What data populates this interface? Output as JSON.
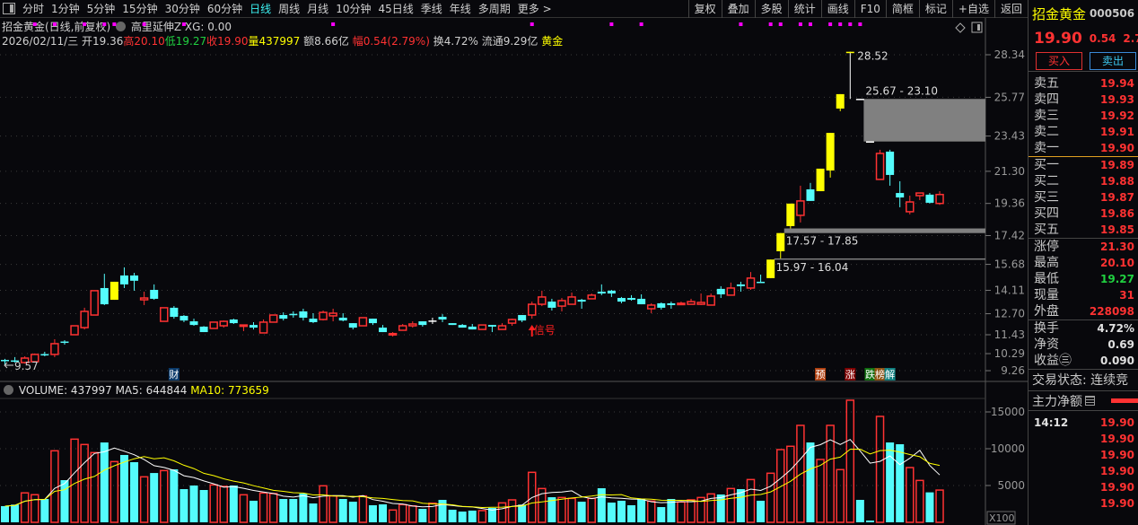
{
  "toolbar": {
    "periods": [
      "分时",
      "1分钟",
      "5分钟",
      "15分钟",
      "30分钟",
      "60分钟",
      "日线",
      "周线",
      "月线",
      "10分钟",
      "45日线",
      "季线",
      "年线",
      "多周期",
      "更多 >"
    ],
    "active_period": "日线",
    "buttons": [
      "复权",
      "叠加",
      "多股",
      "统计",
      "画线",
      "F10",
      "简框",
      "标记",
      "+自选",
      "返回"
    ]
  },
  "info": {
    "title": "招金黄金(日线,前复权)",
    "indicator": "高里延伸Z XG: 0.00",
    "date": "2026/02/11/三",
    "open": "开19.36",
    "high": "高20.10",
    "low": "低19.27",
    "close": "收19.90",
    "volume": "量437997",
    "amount": "额8.66亿",
    "change": "幅0.54(2.79%)",
    "turnover": "换4.72%",
    "float": "流通9.29亿",
    "sector": "黄金"
  },
  "volume_header": {
    "volume": "VOLUME: 437997",
    "ma5": "MA5: 644844",
    "ma10": "MA10: 773659"
  },
  "colors": {
    "up": "#ff3232",
    "down": "#54fcfc",
    "signal": "#ffff00",
    "doji": "#ffffff",
    "ma5": "#ffffff",
    "ma10": "#ffff00",
    "dot": "#ff00ff",
    "gap": "#808080"
  },
  "chart_data": {
    "type": "candlestick",
    "price_ticks": [
      "28.34",
      "25.77",
      "23.43",
      "21.30",
      "19.36",
      "17.42",
      "15.68",
      "14.11",
      "12.70",
      "11.43",
      "10.29",
      "9.26"
    ],
    "volume_ticks": [
      "15000",
      "10000",
      "5000"
    ],
    "volume_unit": "X100",
    "ylim": [
      9.26,
      28.34
    ],
    "vol_ylim": [
      0,
      17000
    ],
    "ohlc": [
      [
        9.91,
        9.97,
        9.57,
        9.89
      ],
      [
        9.88,
        10.08,
        9.75,
        9.86
      ],
      [
        9.75,
        10.13,
        9.69,
        10.02
      ],
      [
        9.8,
        10.3,
        9.8,
        10.24
      ],
      [
        10.26,
        10.4,
        10.13,
        10.24
      ],
      [
        10.24,
        11.16,
        10.08,
        10.89
      ],
      [
        11.02,
        11.1,
        10.83,
        11.0
      ],
      [
        11.43,
        11.97,
        11.43,
        11.97
      ],
      [
        11.86,
        13.06,
        11.75,
        12.84
      ],
      [
        12.62,
        14.09,
        12.62,
        14.09
      ],
      [
        14.25,
        15.11,
        13.22,
        13.27
      ],
      [
        13.54,
        14.63,
        13.54,
        14.63
      ],
      [
        15.01,
        15.5,
        14.25,
        14.47
      ],
      [
        15.01,
        15.17,
        14.09,
        14.69
      ],
      [
        13.54,
        14.03,
        13.22,
        13.65
      ],
      [
        14.14,
        14.47,
        13.54,
        13.6
      ],
      [
        12.24,
        13.06,
        12.24,
        13.06
      ],
      [
        13.06,
        13.16,
        12.4,
        12.51
      ],
      [
        12.57,
        12.62,
        12.19,
        12.29
      ],
      [
        12.24,
        12.4,
        11.97,
        12.02
      ],
      [
        11.92,
        11.95,
        11.59,
        11.59
      ],
      [
        11.81,
        12.19,
        11.81,
        12.19
      ],
      [
        11.97,
        12.29,
        11.86,
        12.24
      ],
      [
        12.35,
        12.4,
        12.08,
        12.13
      ],
      [
        11.97,
        12.02,
        11.65,
        12.02
      ],
      [
        12.02,
        12.19,
        11.75,
        11.86
      ],
      [
        11.54,
        12.35,
        11.54,
        12.19
      ],
      [
        12.19,
        12.62,
        12.19,
        12.62
      ],
      [
        12.62,
        12.78,
        12.29,
        12.4
      ],
      [
        12.69,
        12.84,
        12.46,
        12.67
      ],
      [
        12.84,
        13.0,
        12.29,
        12.46
      ],
      [
        12.4,
        12.73,
        12.13,
        12.19
      ],
      [
        12.35,
        12.89,
        12.29,
        12.78
      ],
      [
        12.57,
        13.0,
        12.24,
        12.73
      ],
      [
        12.46,
        12.73,
        12.24,
        12.29
      ],
      [
        12.13,
        12.13,
        11.75,
        11.86
      ],
      [
        11.97,
        12.46,
        11.97,
        12.46
      ],
      [
        12.4,
        12.4,
        12.02,
        12.13
      ],
      [
        11.86,
        12.02,
        11.59,
        11.59
      ],
      [
        11.48,
        11.59,
        11.32,
        11.5
      ],
      [
        11.7,
        12.08,
        11.7,
        11.97
      ],
      [
        11.97,
        12.24,
        11.86,
        12.08
      ],
      [
        12.24,
        12.24,
        11.92,
        12.02
      ],
      [
        12.29,
        12.46,
        12.08,
        12.29
      ],
      [
        12.51,
        12.67,
        12.19,
        12.35
      ],
      [
        12.13,
        12.13,
        12.02,
        12.02
      ],
      [
        12.02,
        12.08,
        11.86,
        11.86
      ],
      [
        11.92,
        12.08,
        11.75,
        11.75
      ],
      [
        11.75,
        12.02,
        11.75,
        12.02
      ],
      [
        12.02,
        12.02,
        11.59,
        11.92
      ],
      [
        11.75,
        12.13,
        11.75,
        11.97
      ],
      [
        12.13,
        12.4,
        11.97,
        12.35
      ],
      [
        12.62,
        12.62,
        12.19,
        12.29
      ],
      [
        12.62,
        13.43,
        12.4,
        13.27
      ],
      [
        13.27,
        14.09,
        13.16,
        13.71
      ],
      [
        13.43,
        13.6,
        12.89,
        13.06
      ],
      [
        13.16,
        13.65,
        12.84,
        13.49
      ],
      [
        13.27,
        13.98,
        13.27,
        13.71
      ],
      [
        13.54,
        13.6,
        13.0,
        13.43
      ],
      [
        13.6,
        13.92,
        13.6,
        13.82
      ],
      [
        14.03,
        14.47,
        13.82,
        13.92
      ],
      [
        14.09,
        14.14,
        13.71,
        13.92
      ],
      [
        13.65,
        13.71,
        13.33,
        13.43
      ],
      [
        13.65,
        13.82,
        13.49,
        13.54
      ],
      [
        13.6,
        13.87,
        13.27,
        13.27
      ],
      [
        13.0,
        13.33,
        12.73,
        13.22
      ],
      [
        13.33,
        13.38,
        12.95,
        13.06
      ],
      [
        13.33,
        13.43,
        13.0,
        13.22
      ],
      [
        13.27,
        13.43,
        13.27,
        13.33
      ],
      [
        13.27,
        13.6,
        13.27,
        13.43
      ],
      [
        13.27,
        13.92,
        13.22,
        13.38
      ],
      [
        13.22,
        13.92,
        13.22,
        13.76
      ],
      [
        14.2,
        14.36,
        13.65,
        13.87
      ],
      [
        13.82,
        14.58,
        13.82,
        14.25
      ],
      [
        14.47,
        14.63,
        14.03,
        14.36
      ],
      [
        14.25,
        15.22,
        14.14,
        14.85
      ],
      [
        14.63,
        15.06,
        14.58,
        14.58
      ],
      [
        14.85,
        15.97,
        14.85,
        15.97
      ],
      [
        16.47,
        17.57,
        16.04,
        17.57
      ],
      [
        17.99,
        19.35,
        17.85,
        19.35
      ],
      [
        18.64,
        20.43,
        18.21,
        19.51
      ],
      [
        20.21,
        20.6,
        19.51,
        19.51
      ],
      [
        20.1,
        21.46,
        20.1,
        21.46
      ],
      [
        21.35,
        23.62,
        20.92,
        23.62
      ],
      [
        25.09,
        25.96,
        24.93,
        25.96
      ],
      [
        28.52,
        28.52,
        25.67,
        28.52
      ],
      [
        25.68,
        25.68,
        25.67,
        25.67
      ],
      [
        23.11,
        23.11,
        23.1,
        23.1
      ],
      [
        20.81,
        22.6,
        20.81,
        22.38
      ],
      [
        22.49,
        22.6,
        20.43,
        21.08
      ],
      [
        19.99,
        20.7,
        19.13,
        19.72
      ],
      [
        18.86,
        19.83,
        18.7,
        19.45
      ],
      [
        19.83,
        19.99,
        19.56,
        19.99
      ],
      [
        19.89,
        19.99,
        19.35,
        19.4
      ],
      [
        19.36,
        20.1,
        19.27,
        19.9
      ]
    ],
    "signal_candles": [
      11,
      77,
      78,
      79,
      82,
      83,
      84,
      85
    ],
    "volume": [
      2200,
      2400,
      4000,
      3750,
      3170,
      9720,
      5730,
      11300,
      10570,
      9470,
      10850,
      8250,
      9150,
      8170,
      6180,
      6700,
      7030,
      7200,
      4510,
      5000,
      4390,
      5080,
      4880,
      5000,
      3740,
      2930,
      3980,
      3900,
      3170,
      3170,
      3900,
      2560,
      4960,
      3580,
      3170,
      2800,
      3580,
      2320,
      2440,
      1670,
      2400,
      2230,
      1830,
      2600,
      3050,
      1710,
      1460,
      1590,
      1590,
      1950,
      2640,
      3050,
      2400,
      6790,
      4590,
      3410,
      3370,
      3250,
      2800,
      3250,
      4630,
      2680,
      2930,
      2320,
      3170,
      2890,
      2070,
      3170,
      2760,
      3050,
      3370,
      3860,
      3780,
      4590,
      4510,
      5810,
      2930,
      6670,
      9880,
      10330,
      13170,
      10850,
      8540,
      13170,
      7160,
      16590,
      3050,
      240,
      14390,
      10850,
      10610,
      7440,
      5690,
      4070,
      4380
    ],
    "dot_signals": [
      3,
      5,
      8,
      10,
      11,
      14,
      18,
      33,
      53,
      61,
      64,
      74,
      77,
      78,
      80,
      81,
      83,
      84,
      85,
      86
    ],
    "gaps": [
      {
        "label": "25.67 - 23.10",
        "top": 25.67,
        "bottom": 23.1,
        "from": 86
      },
      {
        "label": "17.57 - 17.85",
        "top": 17.85,
        "bottom": 17.57,
        "from": 78
      },
      {
        "label": "15.97 - 16.04",
        "top": 16.04,
        "bottom": 15.97,
        "from": 77
      }
    ],
    "high_label": "28.52",
    "low_label": "9.57",
    "signal_text": "信号",
    "signal_text_at": 53,
    "event_markers": [
      {
        "text": "财",
        "at": 17,
        "bg": "#0a3a6a"
      },
      {
        "text": "预",
        "at": 82,
        "bg": "#b04010"
      },
      {
        "text": "涨",
        "at": 85,
        "bg": "#800000"
      },
      {
        "text": "跌",
        "at": 87,
        "bg": "#107010"
      },
      {
        "text": "榜",
        "at": 88,
        "bg": "#905010"
      },
      {
        "text": "解",
        "at": 89,
        "bg": "#108080"
      }
    ]
  },
  "right_panel": {
    "name": "招金黄金",
    "code": "000506",
    "price": "19.90",
    "change": "0.54",
    "change_pct": "2.79%",
    "buy_label": "买入",
    "sell_label": "卖出",
    "asks": [
      {
        "label": "卖五",
        "price": "19.94"
      },
      {
        "label": "卖四",
        "price": "19.93"
      },
      {
        "label": "卖三",
        "price": "19.92"
      },
      {
        "label": "卖二",
        "price": "19.91"
      },
      {
        "label": "卖一",
        "price": "19.90"
      }
    ],
    "bids": [
      {
        "label": "买一",
        "price": "19.89"
      },
      {
        "label": "买二",
        "price": "19.88"
      },
      {
        "label": "买三",
        "price": "19.87"
      },
      {
        "label": "买四",
        "price": "19.86"
      },
      {
        "label": "买五",
        "price": "19.85"
      }
    ],
    "stats": [
      {
        "label": "涨停",
        "value": "21.30",
        "color": "#ff3232"
      },
      {
        "label": "最高",
        "value": "20.10",
        "color": "#ff3232"
      },
      {
        "label": "最低",
        "value": "19.27",
        "color": "#20d040"
      },
      {
        "label": "现量",
        "value": "31",
        "color": "#ff3232"
      },
      {
        "label": "外盘",
        "value": "228098",
        "color": "#ff3232"
      }
    ],
    "fundamentals": [
      {
        "label": "换手",
        "value": "4.72%"
      },
      {
        "label": "净资",
        "value": "0.69"
      },
      {
        "label": "收益㊂",
        "value": "0.090"
      }
    ],
    "trade_status": "交易状态: 连续竞",
    "main_flow_label": "主力净额",
    "ticks": [
      {
        "time": "14:12",
        "price": "19.90"
      },
      {
        "time": "",
        "price": "19.90"
      },
      {
        "time": "",
        "price": "19.90"
      },
      {
        "time": "",
        "price": "19.90"
      },
      {
        "time": "",
        "price": "19.90"
      },
      {
        "time": "",
        "price": "19.90"
      }
    ]
  }
}
